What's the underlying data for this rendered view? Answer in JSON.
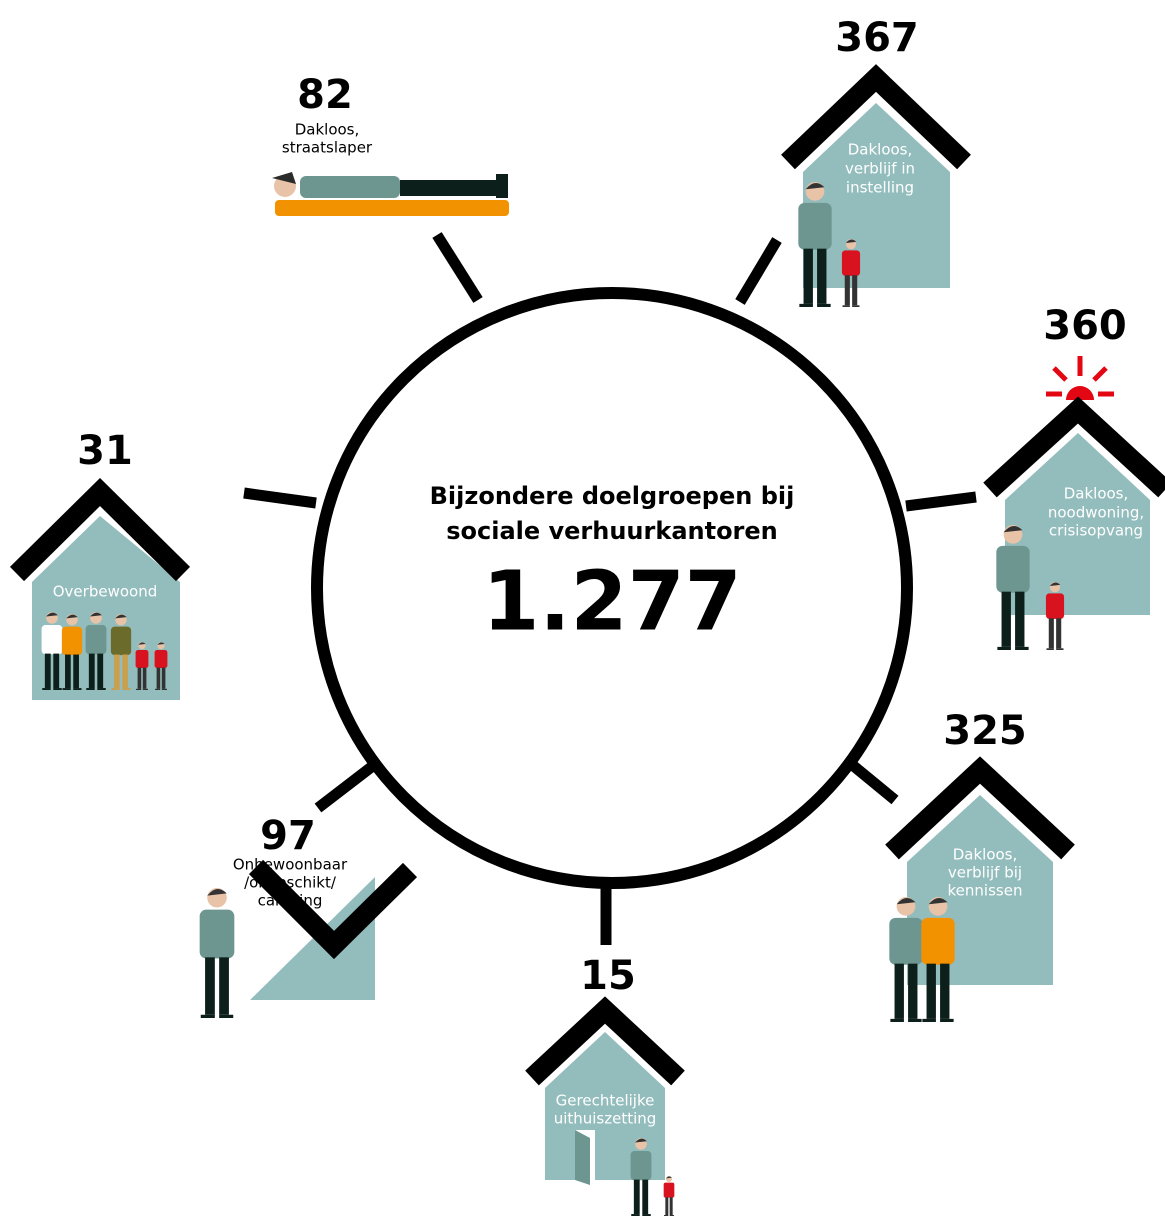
{
  "title": [
    "Bijzondere doelgroepen bij",
    "sociale verhuurkantoren"
  ],
  "total": "1.277",
  "groups": [
    {
      "value": 82,
      "label": [
        "Dakloos,",
        "straatslaper"
      ]
    },
    {
      "value": 367,
      "label": [
        "Dakloos,",
        "verblijf in",
        "instelling"
      ]
    },
    {
      "value": 360,
      "label": [
        "Dakloos,",
        "noodwoning,",
        "crisisopvang"
      ]
    },
    {
      "value": 325,
      "label": [
        "Dakloos,",
        "verblijf bij",
        "kennissen"
      ]
    },
    {
      "value": 15,
      "label": [
        "Gerechtelijke",
        "uithuiszetting"
      ]
    },
    {
      "value": 97,
      "label": [
        "Onbewoonbaar",
        "/ongeschikt/",
        "camping"
      ]
    },
    {
      "value": 31,
      "label": [
        "Overbewoond"
      ]
    }
  ]
}
